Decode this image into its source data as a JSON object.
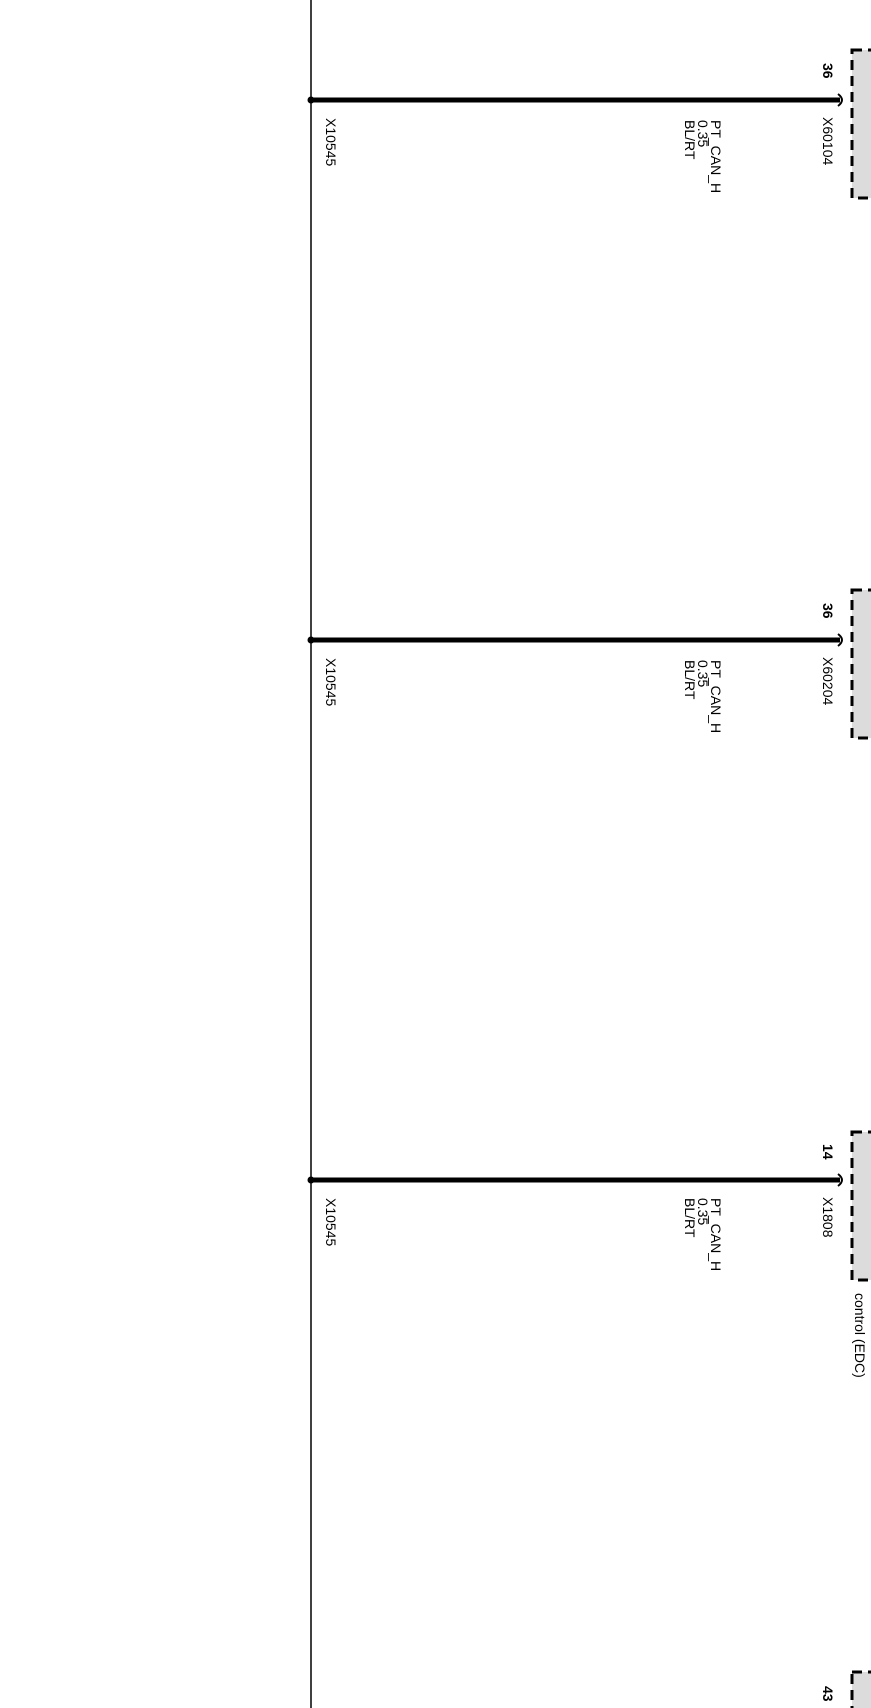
{
  "bus": {
    "label": "X10545"
  },
  "circuits": [
    {
      "pin": "36",
      "connector": "X60104",
      "signal": "PT_CAN_H",
      "gauge": "0.35",
      "color_code": "BL/RT",
      "splice": "X10545"
    },
    {
      "pin": "36",
      "connector": "X60204",
      "signal": "PT_CAN_H",
      "gauge": "0.35",
      "color_code": "BL/RT",
      "splice": "X10545"
    },
    {
      "pin": "14",
      "connector": "X1808",
      "signal": "PT_CAN_H",
      "gauge": "0.35",
      "color_code": "BL/RT",
      "splice": "X10545",
      "component_label": "control (EDC)"
    },
    {
      "pin": "43"
    }
  ],
  "colors": {
    "wire": "#000000",
    "component_fill": "#dcdcdc"
  }
}
